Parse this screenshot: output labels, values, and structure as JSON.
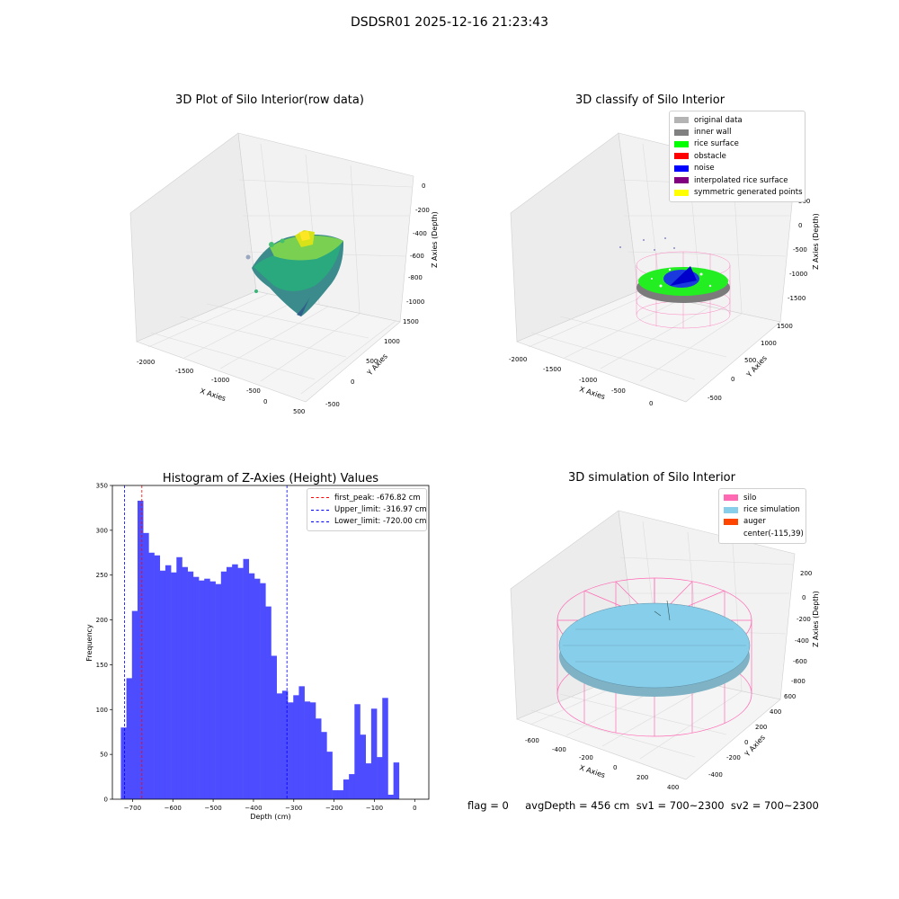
{
  "figure": {
    "suptitle": "DSDSR01 2025-12-16 21:23:43"
  },
  "panel1": {
    "title": "3D Plot of Silo Interior(row data)",
    "xlabel": "X Axies",
    "ylabel": "Y Axies",
    "zlabel": "Z Axies (Depth)",
    "xticks": [
      "-2000",
      "-1500",
      "-1000",
      "-500",
      "0",
      "500"
    ],
    "yticks": [
      "-500",
      "0",
      "500",
      "1000",
      "1500"
    ],
    "zticks": [
      "0",
      "-200",
      "-400",
      "-600",
      "-800",
      "-1000"
    ]
  },
  "panel2": {
    "title": "3D classify of Silo Interior",
    "xlabel": "X Axies",
    "ylabel": "Y Axies",
    "zlabel": "Z Axies (Depth)",
    "xticks": [
      "-2000",
      "-1500",
      "-1000",
      "-500",
      "0"
    ],
    "yticks": [
      "-500",
      "0",
      "500",
      "1000",
      "1500"
    ],
    "zticks": [
      "500",
      "0",
      "-500",
      "-1000",
      "-1500"
    ],
    "legend": [
      {
        "label": "original data",
        "color": "#b4b4b4"
      },
      {
        "label": "inner wall",
        "color": "#808080"
      },
      {
        "label": "rice surface",
        "color": "#00ff00"
      },
      {
        "label": "obstacle",
        "color": "#ff0000"
      },
      {
        "label": "noise",
        "color": "#0000ff"
      },
      {
        "label": "interpolated rice surface",
        "color": "#800080"
      },
      {
        "label": "symmetric generated points",
        "color": "#ffff00"
      }
    ]
  },
  "panel3": {
    "legend": [
      {
        "label": "first_peak: -676.82 cm",
        "color": "#ff0000"
      },
      {
        "label": "Upper_limit: -316.97 cm",
        "color": "#0000ff"
      },
      {
        "label": "Lower_limit: -720.00 cm",
        "color": "#0000ff"
      }
    ]
  },
  "panel4": {
    "title": "3D simulation of Silo Interior",
    "xlabel": "X Axies",
    "ylabel": "Y Axies",
    "zlabel": "Z Axies (Depth)",
    "xticks": [
      "-600",
      "-400",
      "-200",
      "0",
      "200",
      "400"
    ],
    "yticks": [
      "-400",
      "-200",
      "0",
      "200",
      "400",
      "600"
    ],
    "zticks": [
      "200",
      "0",
      "-200",
      "-400",
      "-600",
      "-800"
    ],
    "legend": [
      {
        "label": "silo",
        "color": "#ff69b4"
      },
      {
        "label": "rice simulation",
        "color": "#87ceeb"
      },
      {
        "label": "auger",
        "color": "#ff4500"
      },
      {
        "label": "center(-115,39)",
        "color": ""
      }
    ]
  },
  "footer": {
    "text": "flag = 0     avgDepth = 456 cm  sv1 = 700~2300  sv2 = 700~2300"
  },
  "chart_data": [
    {
      "type": "histogram",
      "title": "Histogram of Z-Axies (Height) Values",
      "xlabel": "Depth (cm)",
      "ylabel": "Frequency",
      "xlim": [
        -750,
        35
      ],
      "ylim": [
        0,
        350
      ],
      "xticks": [
        -700,
        -600,
        -500,
        -400,
        -300,
        -200,
        -100,
        0
      ],
      "yticks": [
        0,
        50,
        100,
        150,
        200,
        250,
        300,
        350
      ],
      "bar_color": "#4d4dff",
      "bin_width": 13.8,
      "bin_start": -729,
      "values": [
        80,
        135,
        210,
        333,
        297,
        275,
        272,
        255,
        261,
        253,
        270,
        259,
        254,
        248,
        244,
        246,
        243,
        240,
        254,
        259,
        262,
        258,
        268,
        252,
        246,
        241,
        215,
        160,
        118,
        121,
        108,
        116,
        126,
        109,
        108,
        90,
        75,
        53,
        10,
        10,
        22,
        28,
        106,
        72,
        40,
        101,
        47,
        113,
        5,
        41
      ],
      "vlines": [
        {
          "name": "first_peak",
          "x": -676.82,
          "color": "#ff0000"
        },
        {
          "name": "Upper_limit",
          "x": -316.97,
          "color": "#0000ff"
        },
        {
          "name": "Lower_limit",
          "x": -720.0,
          "color": "#0000ff"
        }
      ]
    }
  ]
}
